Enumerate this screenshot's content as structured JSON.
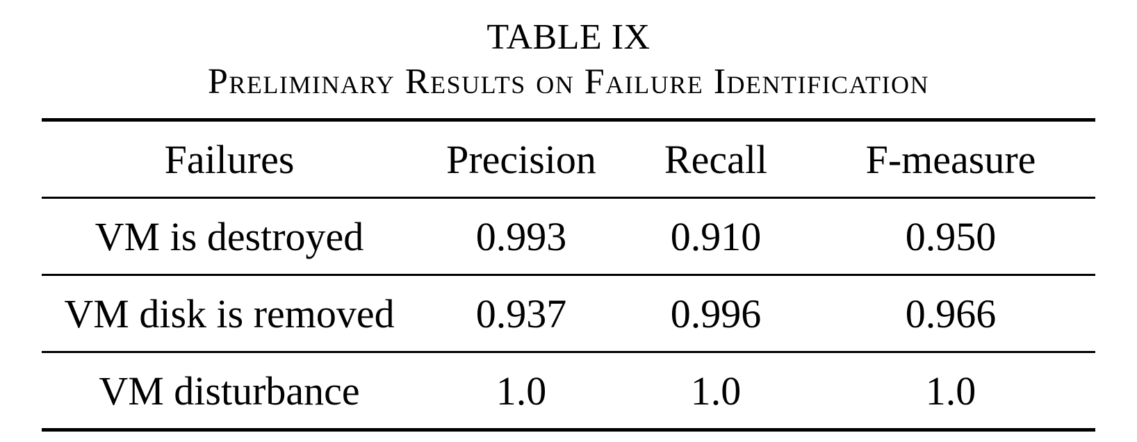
{
  "table": {
    "number": "TABLE IX",
    "caption": "Preliminary Results on Failure Identification",
    "headers": [
      "Failures",
      "Precision",
      "Recall",
      "F-measure"
    ],
    "rows": [
      [
        "VM is destroyed",
        "0.993",
        "0.910",
        "0.950"
      ],
      [
        "VM disk is removed",
        "0.937",
        "0.996",
        "0.966"
      ],
      [
        "VM disturbance",
        "1.0",
        "1.0",
        "1.0"
      ]
    ]
  }
}
